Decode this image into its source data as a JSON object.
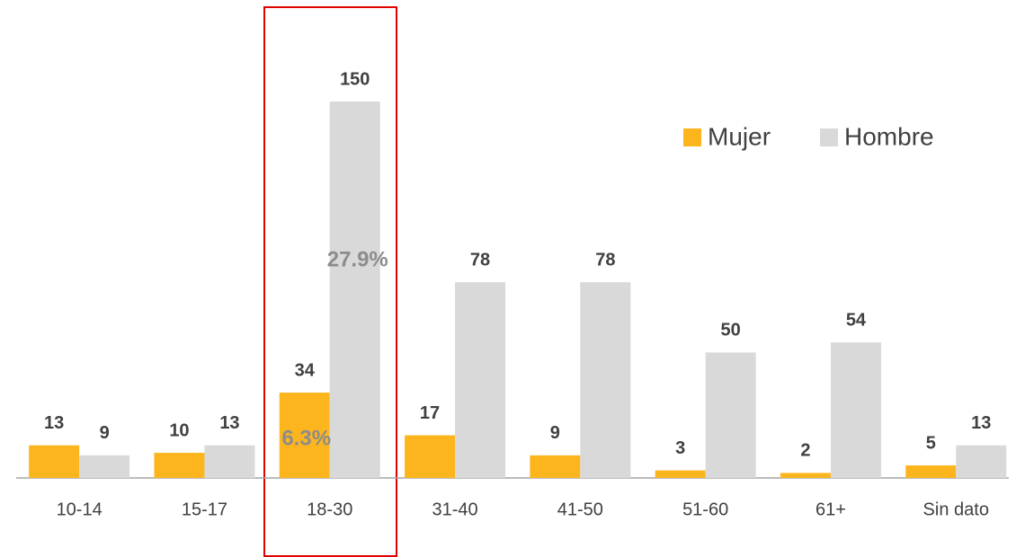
{
  "chart_data": {
    "type": "bar",
    "categories": [
      "10-14",
      "15-17",
      "18-30",
      "31-40",
      "41-50",
      "51-60",
      "61+",
      "Sin dato"
    ],
    "series": [
      {
        "name": "Mujer",
        "color": "#fdb51d",
        "values": [
          13,
          10,
          34,
          17,
          9,
          3,
          2,
          5
        ]
      },
      {
        "name": "Hombre",
        "color": "#d9d9d9",
        "values": [
          9,
          13,
          150,
          78,
          78,
          50,
          54,
          13
        ]
      }
    ],
    "annotations": [
      "27.9%",
      "6.3%"
    ],
    "legend": "top-right"
  }
}
